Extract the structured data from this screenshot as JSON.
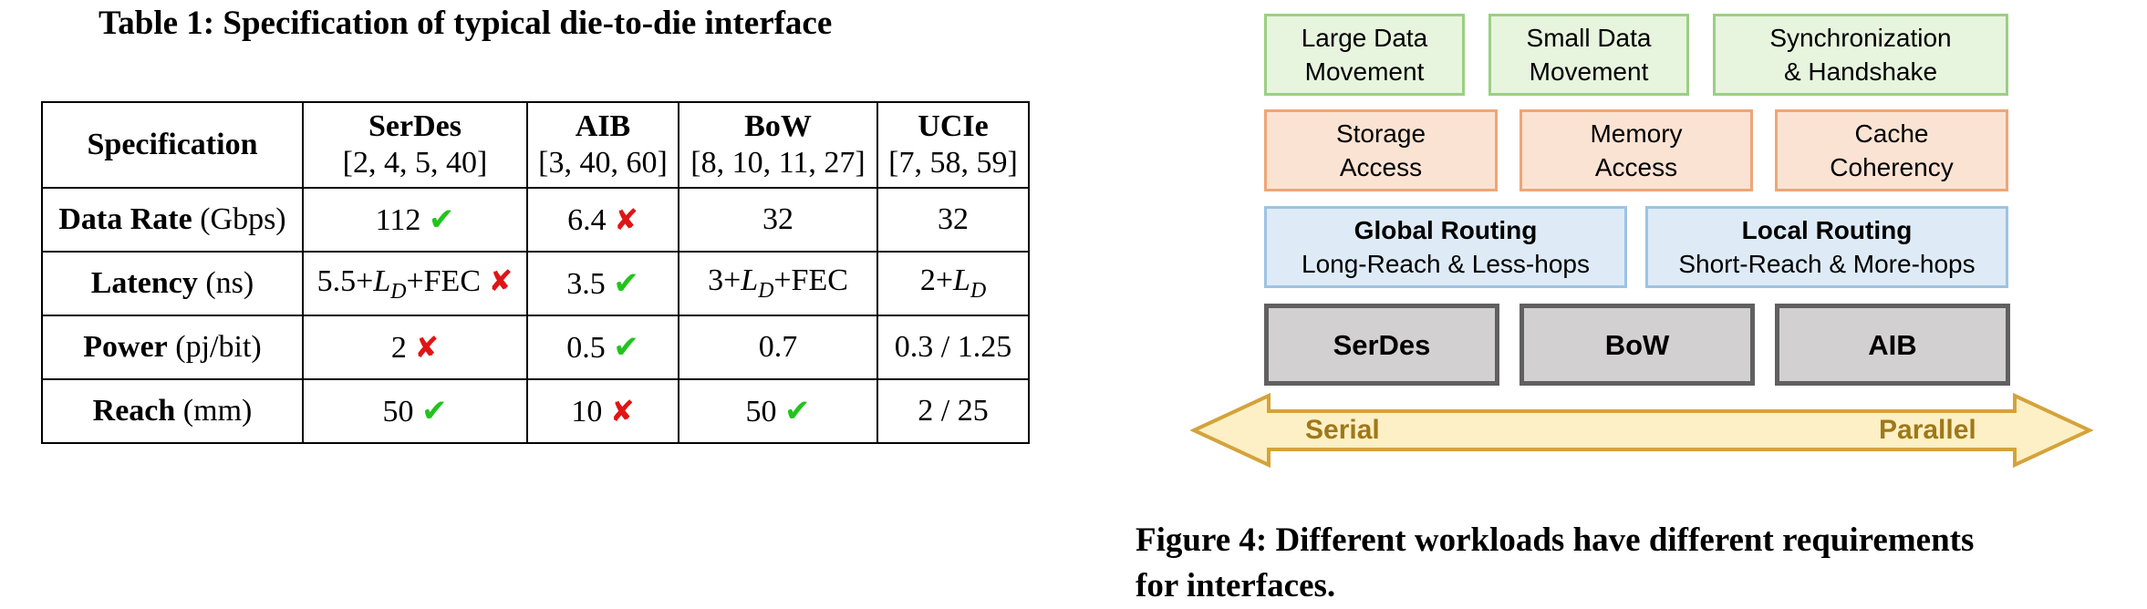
{
  "table": {
    "title": "Table 1: Specification of typical die-to-die interface",
    "spec_header": "Specification",
    "columns": [
      {
        "name": "SerDes",
        "refs": "[2, 4, 5, 40]"
      },
      {
        "name": "AIB",
        "refs": "[3, 40, 60]"
      },
      {
        "name": "BoW",
        "refs": "[8, 10, 11, 27]"
      },
      {
        "name": "UCIe",
        "refs": "[7, 58, 59]"
      }
    ],
    "rows": [
      {
        "label": "Data Rate",
        "unit": "(Gbps)",
        "serdes": "112",
        "aib": "6.4",
        "bow": "32",
        "ucie": "32"
      },
      {
        "label": "Latency",
        "unit": "(ns)",
        "serdes_a": "5.5+",
        "serdes_b": "+FEC",
        "aib": "3.5",
        "bow_a": "3+",
        "bow_b": "+FEC",
        "ucie_a": "2+"
      },
      {
        "label": "Power",
        "unit": "(pj/bit)",
        "serdes": "2",
        "aib": "0.5",
        "bow": "0.7",
        "ucie": "0.3 / 1.25"
      },
      {
        "label": "Reach",
        "unit": "(mm)",
        "serdes": "50",
        "aib": "10",
        "bow": "50",
        "ucie": "2 / 25"
      }
    ],
    "var_l": "L",
    "var_d": "D",
    "check_glyph": "✔",
    "cross_glyph": "✘"
  },
  "diagram": {
    "workloads": [
      {
        "line1": "Large Data",
        "line2": "Movement"
      },
      {
        "line1": "Small Data",
        "line2": "Movement"
      },
      {
        "line1": "Synchronization",
        "line2": "& Handshake"
      }
    ],
    "access": [
      {
        "line1": "Storage",
        "line2": "Access"
      },
      {
        "line1": "Memory",
        "line2": "Access"
      },
      {
        "line1": "Cache",
        "line2": "Coherency"
      }
    ],
    "routing": [
      {
        "line1": "Global Routing",
        "line2": "Long-Reach & Less-hops"
      },
      {
        "line1": "Local Routing",
        "line2": "Short-Reach & More-hops"
      }
    ],
    "interfaces": [
      "SerDes",
      "BoW",
      "AIB"
    ],
    "arrow": {
      "left": "Serial",
      "right": "Parallel"
    },
    "colors": {
      "green": "#e7f4de",
      "orange": "#fbe3d3",
      "blue": "#deebf6",
      "gray": "#d2d0d0",
      "arrow_fill": "#fdf0c6",
      "arrow_stroke": "#d4a33a"
    }
  },
  "caption": {
    "line1": "Figure 4: Different workloads have different requirements",
    "line2": "for interfaces."
  }
}
